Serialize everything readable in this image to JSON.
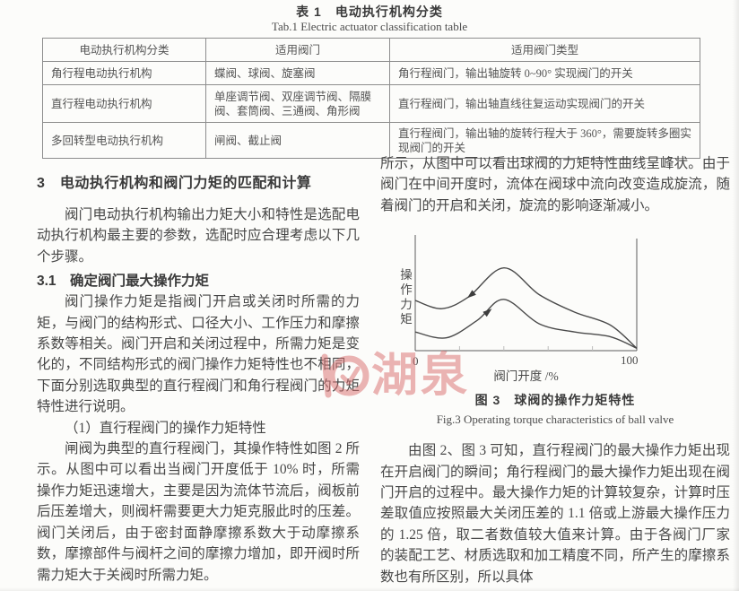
{
  "table_section": {
    "title_cn": "表 1　电动执行机构分类",
    "title_en": "Tab.1  Electric actuator classification table",
    "headers": [
      "电动执行机构分类",
      "适用阀门",
      "适用阀门类型"
    ],
    "rows": [
      [
        "角行程电动执行机构",
        "蝶阀、球阀、旋塞阀",
        "角行程阀门，输出轴旋转 0~90° 实现阀门的开关"
      ],
      [
        "直行程电动执行机构",
        "单座调节阀、双座调节阀、隔膜阀、套筒阀、三通阀、角形阀",
        "直行程阀门，输出轴直线往复运动实现阀门的开关"
      ],
      [
        "多回转型电动执行机构",
        "闸阀、截止阀",
        "直行程阀门，输出轴的旋转行程大于 360°，需要旋转多圈实现阀门的开关"
      ]
    ]
  },
  "left_column": {
    "section_heading": "3　电动执行机构和阀门力矩的匹配和计算",
    "para1": "阀门电动执行机构输出力矩大小和特性是选配电动执行机构最主要的参数，选配时应合理考虑以下几个步骤。",
    "subsection_heading": "3.1　确定阀门最大操作力矩",
    "para2": "阀门操作力矩是指阀门开启或关闭时所需的力矩，与阀门的结构形式、口径大小、工作压力和摩擦系数等相关。阀门开启和关闭过程中，所需力矩是变化的，不同结构形式的阀门操作力矩特性也不相同，下面分别选取典型的直行程阀门和角行程阀门的力矩特性进行说明。",
    "para3": "（1）直行程阀门的操作力矩特性",
    "para4": "闸阀为典型的直行程阀门，其操作特性如图 2 所示。从图中可以看出当阀门开度低于 10% 时，所需操作力矩迅速增大，主要是因为流体节流后，阀板前后压差增大，则阀杆需要更大力矩克服此时的压差。阀门关闭后，由于密封面静摩擦系数大于动摩擦系数，摩擦部件与阀杆之间的摩擦力增加，即开阀时所需力矩大于关阀时所需力矩。"
  },
  "right_column": {
    "para1": "所示，从图中可以看出球阀的力矩特性曲线呈峰状。由于阀门在中间开度时，流体在阀球中流向改变造成旋流，随着阀门的开启和关闭，旋流的影响逐渐减小。",
    "figure": {
      "caption_cn": "图 3　球阀的操作力矩特性",
      "caption_en": "Fig.3  Operating torque characteristics of ball valve",
      "ylabel": "操作力矩",
      "xlabel": "阀门开度 /%",
      "x_tick_left": "0",
      "x_tick_right": "100"
    },
    "para2": "由图 2、图 3 可知，直行程阀门的最大操作力矩出现在开启阀门的瞬间；角行程阀门的最大操作力矩出现在阀门开启的过程中。最大操作力矩的计算较复杂，计算时压差取值应按照最大关闭压差的 1.1 倍或上游最大操作压力的 1.25 倍，取二者数值较大值来计算。由于各阀门厂家的装配工艺、材质选取和加工精度不同，所产生的摩擦系数也有所区别，所以具体"
  },
  "watermark": {
    "text": "湖泉",
    "color": "#d96c6c"
  },
  "chart_data": {
    "type": "line",
    "title": "球阀的操作力矩特性",
    "xlabel": "阀门开度 /%",
    "ylabel": "操作力矩",
    "xlim": [
      0,
      100
    ],
    "x_ticks_labeled": [
      0,
      100
    ],
    "x_ticks_minor": [
      20,
      40,
      60,
      80
    ],
    "ylim": [
      0,
      1
    ],
    "grid": false,
    "legend": "none",
    "series": [
      {
        "name": "upper-curve-closing",
        "x": [
          0,
          12,
          24,
          40,
          56,
          72,
          88,
          100
        ],
        "y": [
          0.43,
          0.36,
          0.46,
          0.71,
          0.48,
          0.33,
          0.22,
          0.02
        ]
      },
      {
        "name": "lower-curve-opening",
        "x": [
          0,
          14,
          28,
          40,
          56,
          72,
          88,
          100
        ],
        "y": [
          0.16,
          0.11,
          0.26,
          0.44,
          0.23,
          0.16,
          0.12,
          0.02
        ]
      }
    ],
    "arrows": [
      {
        "series": 0,
        "pct": 25,
        "dir": "reverse"
      },
      {
        "series": 1,
        "pct": 33,
        "dir": "forward"
      }
    ]
  }
}
